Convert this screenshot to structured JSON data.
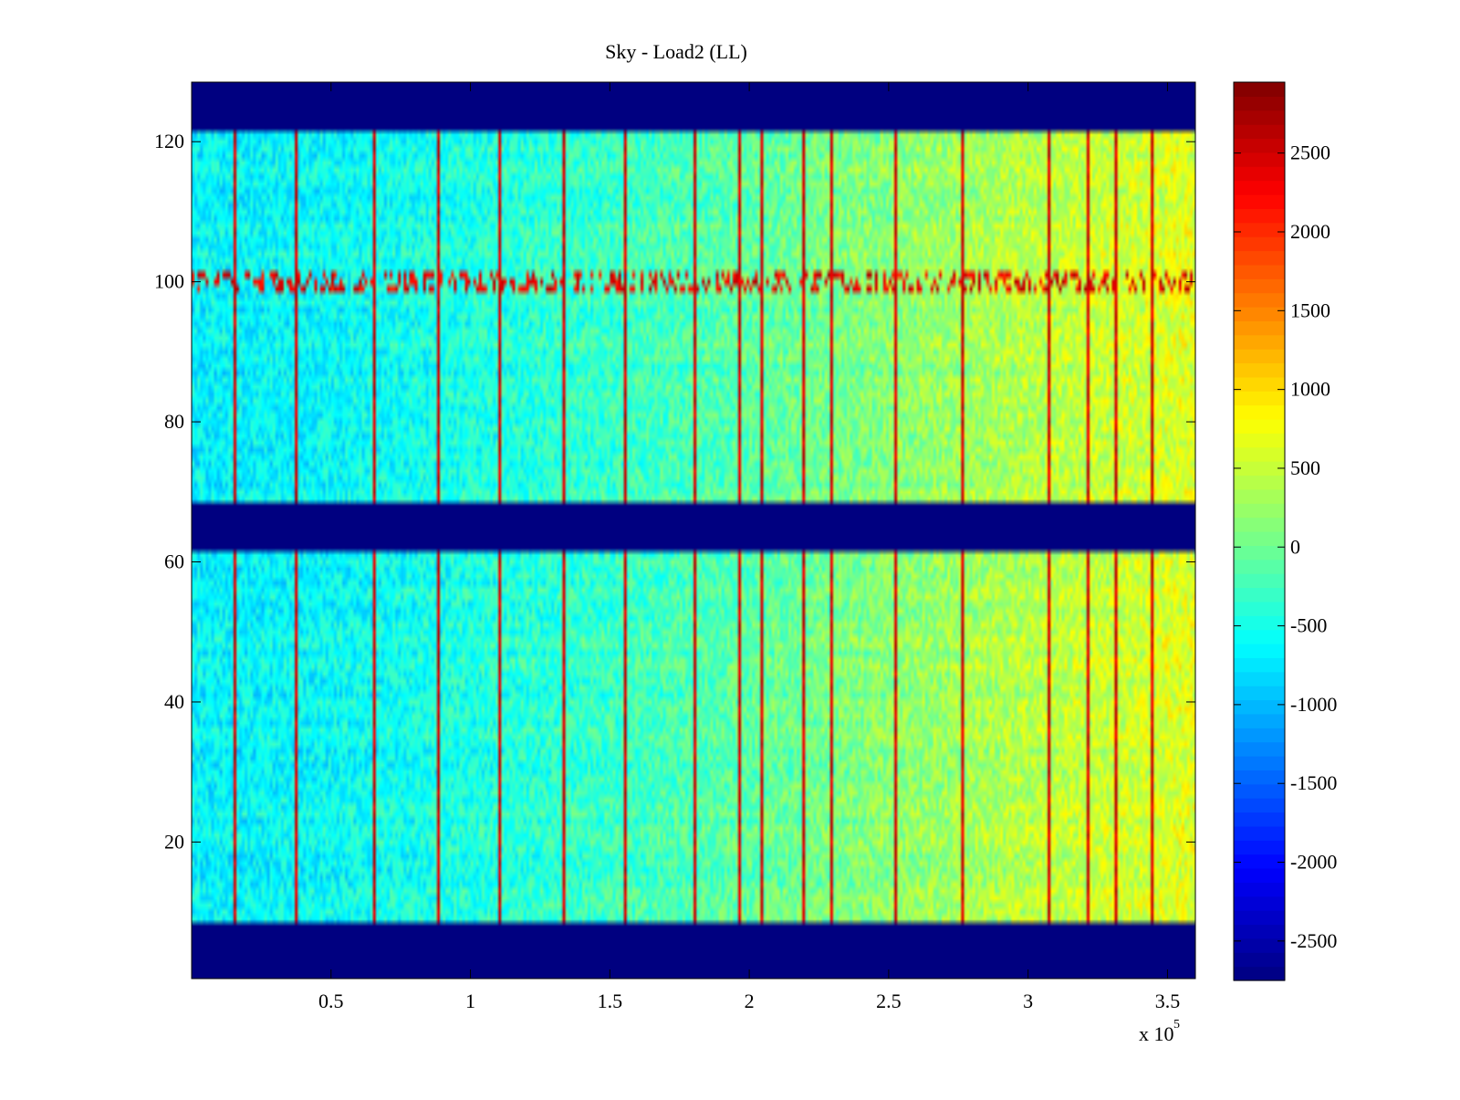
{
  "chart_data": {
    "type": "heatmap",
    "title": "Sky - Load2 (LL)",
    "xlabel": "",
    "ylabel": "",
    "x_exponent_label": "x 10",
    "x_exponent": "5",
    "xlim": [
      0,
      3.6
    ],
    "ylim": [
      0.5,
      128.5
    ],
    "x_ticks": [
      0.5,
      1,
      1.5,
      2,
      2.5,
      3,
      3.5
    ],
    "x_tick_labels": [
      "0.5",
      "1",
      "1.5",
      "2",
      "2.5",
      "3",
      "3.5"
    ],
    "y_ticks": [
      20,
      40,
      60,
      80,
      100,
      120
    ],
    "y_tick_labels": [
      "20",
      "40",
      "60",
      "80",
      "100",
      "120"
    ],
    "colormap": "jet",
    "clim": [
      -2750,
      2950
    ],
    "colorbar_ticks": [
      2500,
      2000,
      1500,
      1000,
      500,
      0,
      -500,
      -1000,
      -1500,
      -2000,
      -2500
    ],
    "colorbar_tick_labels": [
      "2500",
      "2000",
      "1500",
      "1000",
      "500",
      "0",
      "-500",
      "-1000",
      "-1500",
      "-2000",
      "-2500"
    ],
    "masked_row_bands": [
      [
        1,
        8
      ],
      [
        62,
        68
      ],
      [
        122,
        128
      ]
    ],
    "masked_value": -2750,
    "background_trend": {
      "x": [
        0,
        0.5,
        1,
        1.5,
        2,
        2.5,
        3,
        3.6
      ],
      "value": [
        -650,
        -600,
        -450,
        -300,
        -100,
        150,
        400,
        650
      ]
    },
    "spike_columns_x": [
      0.15,
      0.37,
      0.65,
      0.88,
      1.1,
      1.33,
      1.55,
      1.81,
      1.97,
      2.05,
      2.2,
      2.3,
      2.53,
      2.77,
      3.08,
      3.22,
      3.32,
      3.45
    ],
    "spike_value": 2700,
    "bright_row_bands": [
      [
        99,
        101
      ]
    ],
    "grid": false,
    "legend": "none"
  }
}
